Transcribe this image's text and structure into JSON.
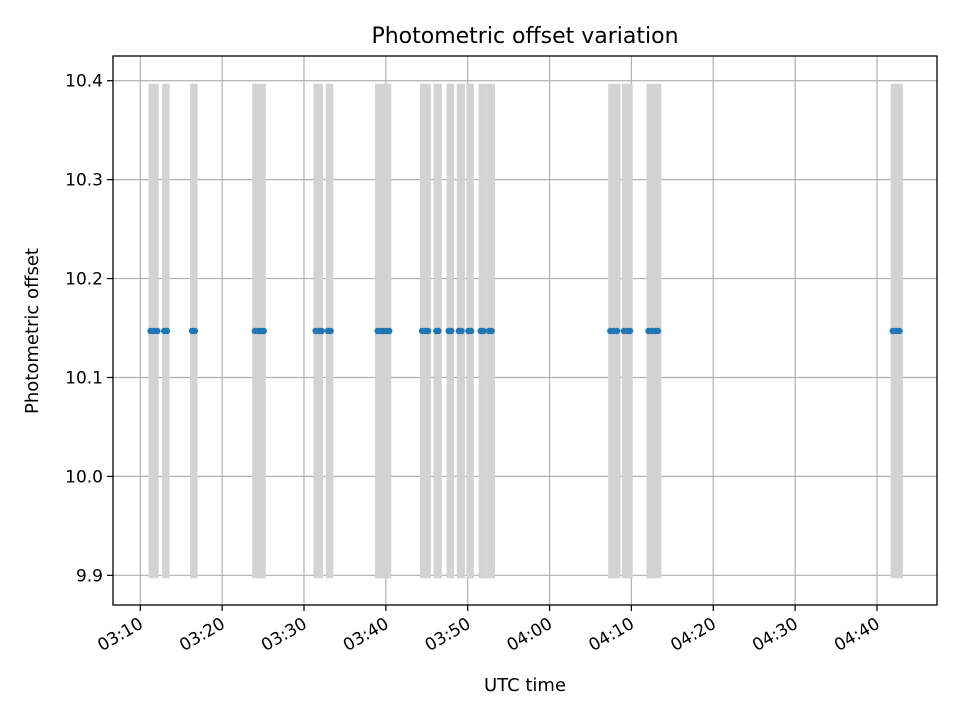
{
  "chart_data": {
    "type": "scatter",
    "title": "Photometric offset variation",
    "xlabel": "UTC time",
    "ylabel": "Photometric offset",
    "x_unit": "UTC time (HH:MM)",
    "xlim": [
      "03:06:40",
      "04:47:20"
    ],
    "ylim": [
      9.87,
      10.425
    ],
    "x_ticks": [
      "03:10",
      "03:20",
      "03:30",
      "03:40",
      "03:50",
      "04:00",
      "04:10",
      "04:20",
      "04:30",
      "04:40"
    ],
    "y_ticks": [
      "9.9",
      "10.0",
      "10.1",
      "10.2",
      "10.3",
      "10.4"
    ],
    "grid": true,
    "bands": {
      "color": "#d3d3d3",
      "y_range": [
        9.897,
        10.397
      ],
      "intervals": [
        [
          "03:11:00",
          "03:12:15"
        ],
        [
          "03:12:40",
          "03:13:35"
        ],
        [
          "03:16:05",
          "03:17:00"
        ],
        [
          "03:23:40",
          "03:25:20"
        ],
        [
          "03:31:10",
          "03:32:20"
        ],
        [
          "03:32:40",
          "03:33:35"
        ],
        [
          "03:38:40",
          "03:40:40"
        ],
        [
          "03:44:10",
          "03:45:30"
        ],
        [
          "03:45:50",
          "03:46:50"
        ],
        [
          "03:47:25",
          "03:48:20"
        ],
        [
          "03:48:40",
          "03:49:40"
        ],
        [
          "03:49:50",
          "03:50:45"
        ],
        [
          "03:51:20",
          "03:52:20"
        ],
        [
          "03:52:20",
          "03:53:20"
        ],
        [
          "04:07:10",
          "04:08:40"
        ],
        [
          "04:08:50",
          "04:10:10"
        ],
        [
          "04:11:50",
          "04:13:40"
        ],
        [
          "04:41:40",
          "04:43:10"
        ]
      ]
    },
    "series": [
      {
        "color": "#1f77b4",
        "x": [
          "03:11:15",
          "03:11:40",
          "03:12:05",
          "03:12:55",
          "03:13:15",
          "03:16:20",
          "03:16:40",
          "03:24:00",
          "03:24:25",
          "03:24:45",
          "03:25:05",
          "03:31:25",
          "03:31:50",
          "03:32:10",
          "03:32:55",
          "03:33:15",
          "03:39:00",
          "03:39:25",
          "03:39:45",
          "03:40:05",
          "03:40:25",
          "03:44:25",
          "03:44:50",
          "03:45:10",
          "03:46:10",
          "03:46:25",
          "03:47:40",
          "03:48:00",
          "03:48:55",
          "03:49:15",
          "03:50:05",
          "03:50:25",
          "03:51:35",
          "03:51:55",
          "03:52:35",
          "03:52:55",
          "04:07:25",
          "04:07:50",
          "04:08:15",
          "04:09:05",
          "04:09:30",
          "04:09:50",
          "04:12:05",
          "04:12:30",
          "04:12:55",
          "04:13:15",
          "04:41:55",
          "04:42:20",
          "04:42:45"
        ],
        "y": [
          10.147,
          10.147,
          10.147,
          10.147,
          10.147,
          10.147,
          10.147,
          10.147,
          10.147,
          10.147,
          10.147,
          10.147,
          10.147,
          10.147,
          10.147,
          10.147,
          10.147,
          10.147,
          10.147,
          10.147,
          10.147,
          10.147,
          10.147,
          10.147,
          10.147,
          10.147,
          10.147,
          10.147,
          10.147,
          10.147,
          10.147,
          10.147,
          10.147,
          10.147,
          10.147,
          10.147,
          10.147,
          10.147,
          10.147,
          10.147,
          10.147,
          10.147,
          10.147,
          10.147,
          10.147,
          10.147,
          10.147,
          10.147,
          10.147
        ]
      }
    ]
  }
}
